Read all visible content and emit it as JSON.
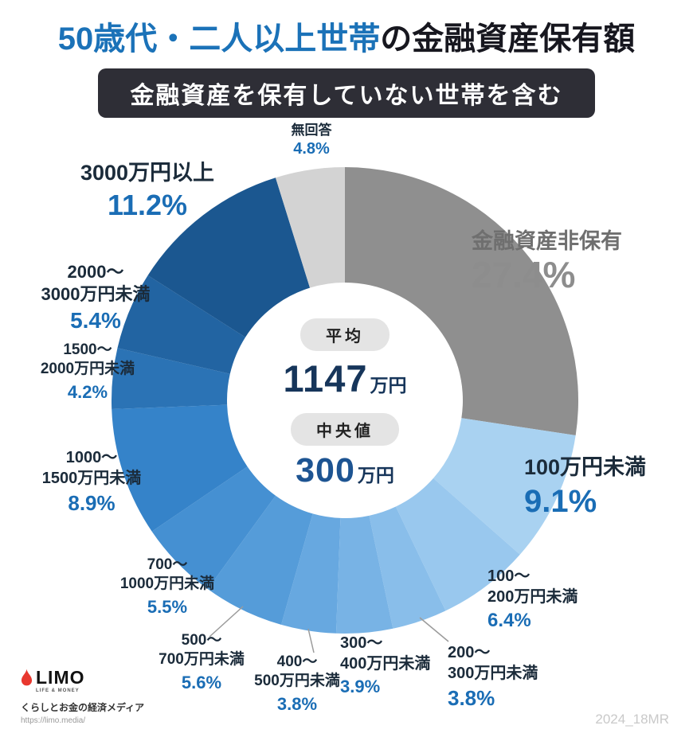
{
  "header": {
    "title_highlight": "50歳代・二人以上世帯",
    "title_rest": "の金融資産保有額",
    "subtitle": "金融資産を保有していない世帯を含む"
  },
  "center": {
    "average_label": "平均",
    "average_num": "1147",
    "average_unit": "万円",
    "median_label": "中央値",
    "median_num": "300",
    "median_unit": "万円"
  },
  "footer": {
    "logo_text": "LIMO",
    "logo_sub": "LIFE & MONEY",
    "tagline": "くらしとお金の経済メディア",
    "url": "https://limo.media/",
    "watermark": "2024_18MR"
  },
  "colors": {
    "title_blue": "#1b72b8",
    "title_dark": "#17171f",
    "subtitle_bg": "#2e2e36",
    "accent_blue": "#1a6db5",
    "gray_label": "#8d8d8d",
    "pill_bg": "#e4e4e4"
  },
  "chart_data": {
    "type": "pie",
    "donut": true,
    "title": "50歳代・二人以上世帯の金融資産保有額",
    "subtitle": "金融資産を保有していない世帯を含む",
    "unit": "%",
    "start_angle_deg": -90,
    "direction": "clockwise",
    "legend_position": "around",
    "center_stats": {
      "average_label": "平均",
      "average": "1147万円",
      "median_label": "中央値",
      "median": "300万円"
    },
    "segments": [
      {
        "label": "金融資産非保有",
        "display": "金融資産非保有",
        "value": 27.4,
        "pct": "27.4%",
        "color": "#8f8f8f"
      },
      {
        "label": "100万円未満",
        "display": "100万円未満",
        "value": 9.1,
        "pct": "9.1%",
        "color": "#a9d2f1"
      },
      {
        "label": "100〜200万円未満",
        "display": "100〜\n200万円未満",
        "value": 6.4,
        "pct": "6.4%",
        "color": "#99c8ee"
      },
      {
        "label": "200〜300万円未満",
        "display": "200〜\n300万円未満",
        "value": 3.8,
        "pct": "3.8%",
        "color": "#89beea"
      },
      {
        "label": "300〜400万円未満",
        "display": "300〜\n400万円未満",
        "value": 3.9,
        "pct": "3.9%",
        "color": "#78b3e5"
      },
      {
        "label": "400〜500万円未満",
        "display": "400〜\n500万円未満",
        "value": 3.8,
        "pct": "3.8%",
        "color": "#67a8e0"
      },
      {
        "label": "500〜700万円未満",
        "display": "500〜\n700万円未満",
        "value": 5.6,
        "pct": "5.6%",
        "color": "#559cd9"
      },
      {
        "label": "700〜1000万円未満",
        "display": "700〜\n1000万円未満",
        "value": 5.5,
        "pct": "5.5%",
        "color": "#4590d2"
      },
      {
        "label": "1000〜1500万円未満",
        "display": "1000〜\n1500万円未満",
        "value": 8.9,
        "pct": "8.9%",
        "color": "#3583c9"
      },
      {
        "label": "1500〜2000万円未満",
        "display": "1500〜\n2000万円未満",
        "value": 4.2,
        "pct": "4.2%",
        "color": "#2b73b5"
      },
      {
        "label": "2000〜3000万円未満",
        "display": "2000〜\n3000万円未満",
        "value": 5.4,
        "pct": "5.4%",
        "color": "#2264a2"
      },
      {
        "label": "3000万円以上",
        "display": "3000万円以上",
        "value": 11.2,
        "pct": "11.2%",
        "color": "#1b5790"
      },
      {
        "label": "無回答",
        "display": "無回答",
        "value": 4.8,
        "pct": "4.8%",
        "color": "#d3d3d3"
      }
    ]
  }
}
